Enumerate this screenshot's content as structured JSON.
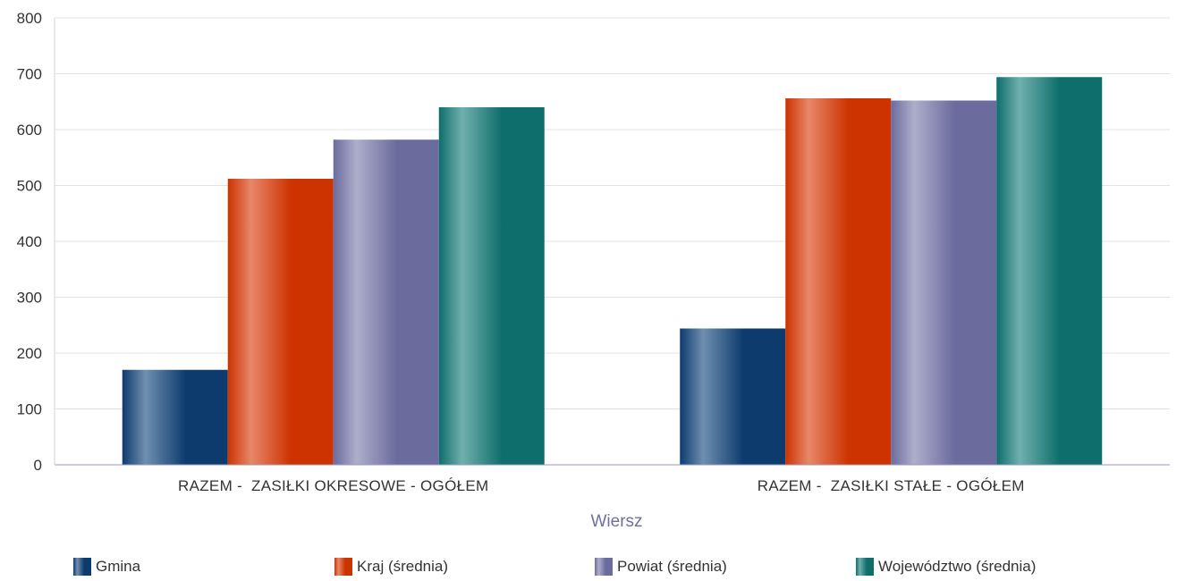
{
  "chart_data": {
    "type": "bar",
    "title": "",
    "xlabel": "Wiersz",
    "ylabel": "",
    "ylim": [
      0,
      800
    ],
    "yticks": [
      0,
      100,
      200,
      300,
      400,
      500,
      600,
      700,
      800
    ],
    "grid": true,
    "legend_position": "bottom",
    "categories": [
      "RAZEM -  ZASIŁKI OKRESOWE - OGÓŁEM",
      "RAZEM -  ZASIŁKI STAŁE - OGÓŁEM"
    ],
    "series": [
      {
        "name": "Gmina",
        "values": [
          170,
          244
        ],
        "color": "#0d3b6e",
        "highlight": "#6f8fb0"
      },
      {
        "name": "Kraj (średnia)",
        "values": [
          512,
          656
        ],
        "color": "#cc3300",
        "highlight": "#e8876a"
      },
      {
        "name": "Powiat (średnia)",
        "values": [
          582,
          652
        ],
        "color": "#6b6b9e",
        "highlight": "#aeaecb"
      },
      {
        "name": "Województwo (średnia)",
        "values": [
          640,
          694
        ],
        "color": "#0e6e6c",
        "highlight": "#6fb0ad"
      }
    ]
  }
}
